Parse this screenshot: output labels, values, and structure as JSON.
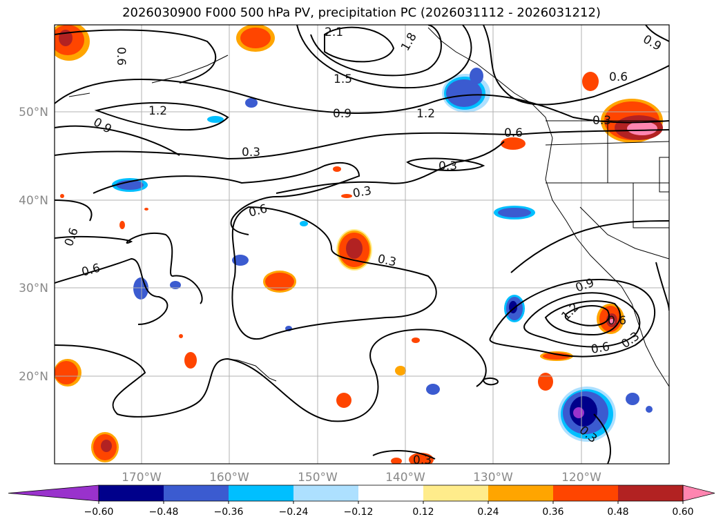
{
  "title": "2026030900 F000 500 hPa PV, precipitation PC (2026031112 - 2026031212)",
  "lon_labels": [
    "170°W",
    "160°W",
    "150°W",
    "140°W",
    "130°W",
    "120°W"
  ],
  "lat_labels": [
    "50°N",
    "40°N",
    "30°N",
    "20°N"
  ],
  "colorbar": {
    "ticks": [
      "−0.60",
      "−0.48",
      "−0.36",
      "−0.24",
      "−0.12",
      "0.12",
      "0.24",
      "0.36",
      "0.48",
      "0.60"
    ],
    "colors": [
      "#9932CC",
      "#00008B",
      "#3B5BD0",
      "#00BFFF",
      "#ADE0FF",
      "#FFFFFF",
      "#FFEC8B",
      "#FFA500",
      "#FF4500",
      "#B22222",
      "#FF85B0"
    ]
  },
  "contour_labels": [
    "2.1",
    "1.8",
    "1.5",
    "1.2",
    "1.2",
    "0.9",
    "0.9",
    "0.9",
    "0.6",
    "0.6",
    "0.6",
    "0.6",
    "0.6",
    "0.3",
    "0.3",
    "0.3",
    "0.3",
    "0.3",
    "1.2",
    "0.9",
    "0.6",
    "0.3",
    "0.3",
    "0.6",
    "0.6",
    "0.3"
  ]
}
